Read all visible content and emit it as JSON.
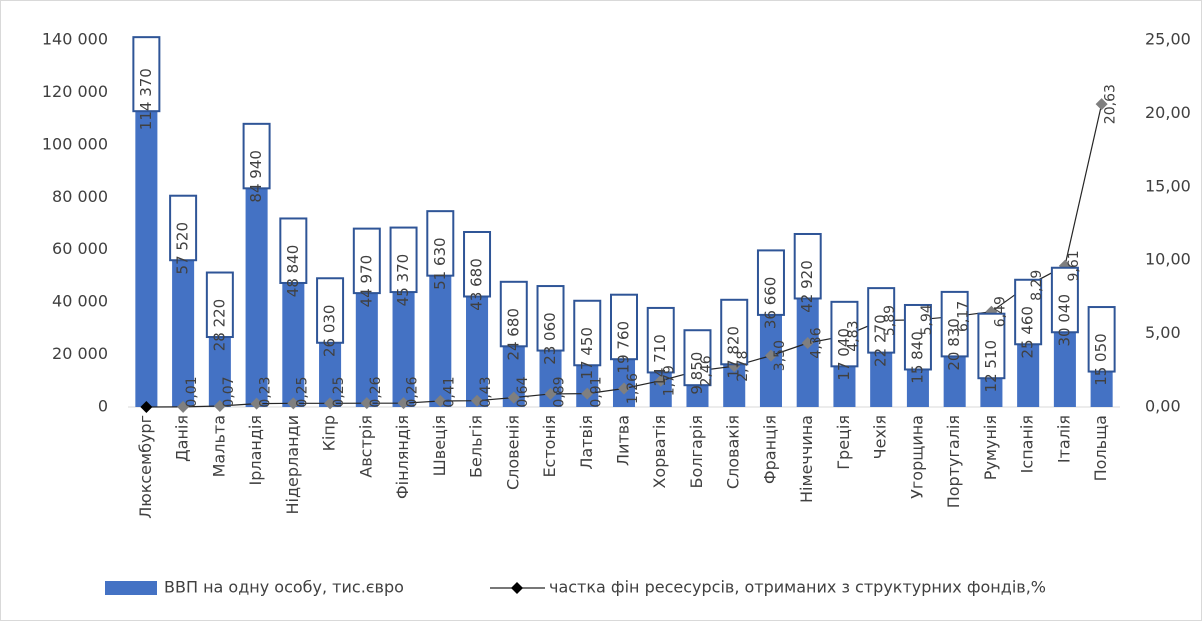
{
  "chart_data": {
    "type": "bar",
    "categories": [
      "Люксембург",
      "Данія",
      "Мальта",
      "Ірландія",
      "Нідерланди",
      "Кіпр",
      "Австрія",
      "Фінляндія",
      "Швеція",
      "Бельгія",
      "Словенія",
      "Естонія",
      "Латвія",
      "Литва",
      "Хорватія",
      "Болгарія",
      "Словакія",
      "Франція",
      "Німеччина",
      "Греція",
      "Чехія",
      "Угорщина",
      "Португалія",
      "Румунія",
      "Іспанія",
      "Італія",
      "Польща"
    ],
    "series": [
      {
        "name": "ВВП на одну особу, тис.євро",
        "type": "bar",
        "color": "#4472c4",
        "values": [
          114370,
          57520,
          28220,
          84940,
          48840,
          26030,
          44970,
          45370,
          51630,
          43680,
          24680,
          23060,
          17450,
          19760,
          14710,
          9850,
          17820,
          36660,
          42920,
          17040,
          22270,
          15840,
          20830,
          12510,
          25460,
          30040,
          15050
        ],
        "value_labels": [
          "114 370",
          "57 520",
          "28 220",
          "84 940",
          "48 840",
          "26 030",
          "44 970",
          "45 370",
          "51 630",
          "43 680",
          "24 680",
          "23 060",
          "17 450",
          "19 760",
          "14 710",
          "9 850",
          "17 820",
          "36 660",
          "42 920",
          "17 040",
          "22 270",
          "15 840",
          "20 830",
          "12 510",
          "25 460",
          "30 040",
          "15 050"
        ]
      },
      {
        "name": "частка фін ресесурсів, отриманих з структурних фондів,%",
        "type": "line",
        "axis": "y2",
        "color": "#262626",
        "values": [
          0,
          0.01,
          0.07,
          0.23,
          0.25,
          0.25,
          0.26,
          0.26,
          0.41,
          0.43,
          0.64,
          0.89,
          0.91,
          1.26,
          1.79,
          2.46,
          2.78,
          3.5,
          4.36,
          4.83,
          5.89,
          5.94,
          6.17,
          6.49,
          8.29,
          9.61,
          20.63
        ],
        "value_labels": [
          null,
          "0,01",
          "0,07",
          "0,23",
          "0,25",
          "0,25",
          "0,26",
          "0,26",
          "0,41",
          "0,43",
          "0,64",
          "0,89",
          "0,91",
          "1,26",
          "1,79",
          "2,46",
          "2,78",
          "3,50",
          "4,36",
          "4,83",
          "5,89",
          "5,94",
          "6,17",
          "6,49",
          "8,29",
          "9,61",
          "20,63"
        ]
      }
    ],
    "ylim": [
      0,
      140000
    ],
    "yticks": [
      0,
      {
        "value": 20000,
        "label": "20 000"
      },
      {
        "value": 40000,
        "label": "40 000"
      },
      {
        "value": 60000,
        "label": "60 000"
      },
      {
        "value": 80000,
        "label": "80 000"
      },
      {
        "value": 100000,
        "label": "100 000"
      },
      {
        "value": 120000,
        "label": "120 000"
      },
      {
        "value": 140000,
        "label": "140 000"
      }
    ],
    "y2lim": [
      0,
      25
    ],
    "y2ticks": [
      {
        "value": 0,
        "label": "0,00"
      },
      {
        "value": 5,
        "label": "5,00"
      },
      {
        "value": 10,
        "label": "10,00"
      },
      {
        "value": 15,
        "label": "15,00"
      },
      {
        "value": 20,
        "label": "20,00"
      },
      {
        "value": 25,
        "label": "25,00"
      }
    ],
    "grid": false,
    "legend": "bottom"
  }
}
